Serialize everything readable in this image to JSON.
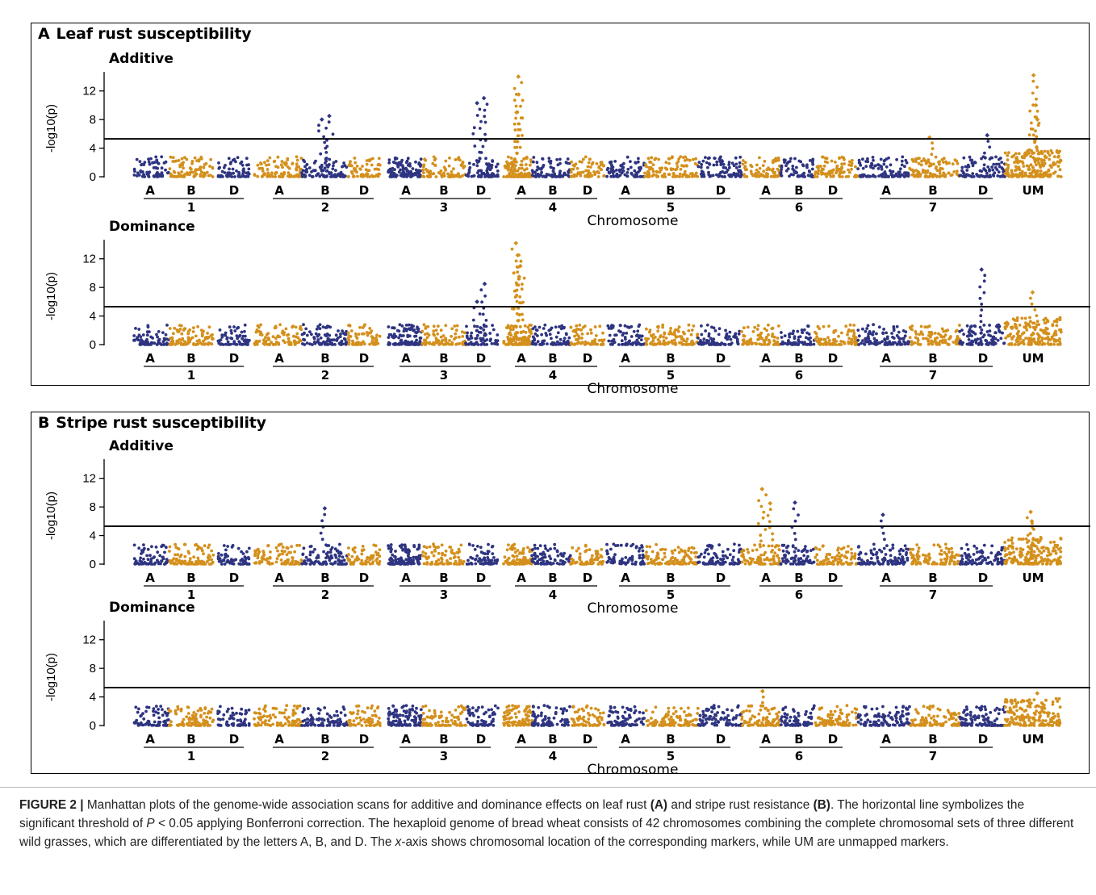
{
  "figure": {
    "caption_label": "FIGURE 2 |",
    "caption_part1": " Manhattan plots of the genome-wide association scans for additive and dominance effects on leaf rust ",
    "caption_ref_a": "(A)",
    "caption_part2": " and stripe rust resistance ",
    "caption_ref_b": "(B)",
    "caption_part3": ". The horizontal line symbolizes the significant threshold of ",
    "caption_p": "P",
    "caption_part4": " < 0.05 applying Bonferroni correction. The hexaploid genome of bread wheat consists of 42 chromosomes combining the complete chromosomal sets of three different wild grasses, which are differentiated by the letters A, B, and D. The ",
    "caption_x": "x",
    "caption_part5": "-axis shows chromosomal location of the corresponding markers, while UM are unmapped markers."
  },
  "panels": [
    {
      "letter": "A",
      "title": "Leaf rust susceptibility"
    },
    {
      "letter": "B",
      "title": "Stripe rust susceptibility"
    }
  ],
  "chart_data": [
    {
      "type": "scatter",
      "panel": "A",
      "title": "Additive",
      "ylabel": "-log10(p)",
      "xlabel": "Chromosome",
      "ylim": [
        0,
        14
      ],
      "y_ticks": [
        0,
        4,
        8,
        12
      ],
      "threshold": 5.3,
      "subgenome_labels": [
        "A",
        "B",
        "D",
        "A",
        "B",
        "D",
        "A",
        "B",
        "D",
        "A",
        "B",
        "D",
        "A",
        "B",
        "D",
        "A",
        "B",
        "D",
        "A",
        "B",
        "D",
        "UM"
      ],
      "chromosome_labels": [
        "1",
        "2",
        "3",
        "4",
        "5",
        "6",
        "7"
      ],
      "series_colors": [
        "#2e3480",
        "#d4901c"
      ],
      "notable_points": [
        {
          "x": "3D",
          "y": 11.0
        },
        {
          "x": "3D",
          "y": 10.3
        },
        {
          "x": "4A",
          "y": 14.0
        },
        {
          "x": "4A",
          "y": 11.5
        },
        {
          "x": "4A",
          "y": 9.0
        },
        {
          "x": "2B",
          "y": 8.5
        },
        {
          "x": "2B",
          "y": 8.0
        },
        {
          "x": "UM",
          "y": 14.2
        },
        {
          "x": "UM",
          "y": 10.0
        },
        {
          "x": "UM",
          "y": 8.0
        },
        {
          "x": "7B",
          "y": 5.5
        },
        {
          "x": "7D",
          "y": 5.8
        }
      ]
    },
    {
      "type": "scatter",
      "panel": "A",
      "title": "Dominance",
      "ylabel": "-log10(p)",
      "xlabel": "Chromosome",
      "ylim": [
        0,
        14
      ],
      "y_ticks": [
        0,
        4,
        8,
        12
      ],
      "threshold": 5.3,
      "subgenome_labels": [
        "A",
        "B",
        "D",
        "A",
        "B",
        "D",
        "A",
        "B",
        "D",
        "A",
        "B",
        "D",
        "A",
        "B",
        "D",
        "A",
        "B",
        "D",
        "A",
        "B",
        "D",
        "UM"
      ],
      "chromosome_labels": [
        "1",
        "2",
        "3",
        "4",
        "5",
        "6",
        "7"
      ],
      "series_colors": [
        "#2e3480",
        "#d4901c"
      ],
      "notable_points": [
        {
          "x": "4A",
          "y": 14.2
        },
        {
          "x": "4A",
          "y": 12.5
        },
        {
          "x": "4A",
          "y": 11.0
        },
        {
          "x": "4A",
          "y": 9.5
        },
        {
          "x": "3D",
          "y": 8.5
        },
        {
          "x": "3D",
          "y": 6.0
        },
        {
          "x": "7D",
          "y": 10.5
        },
        {
          "x": "UM",
          "y": 7.3
        }
      ]
    },
    {
      "type": "scatter",
      "panel": "B",
      "title": "Additive",
      "ylabel": "-log10(p)",
      "xlabel": "Chromosome",
      "ylim": [
        0,
        14
      ],
      "y_ticks": [
        0,
        4,
        8,
        12
      ],
      "threshold": 5.3,
      "subgenome_labels": [
        "A",
        "B",
        "D",
        "A",
        "B",
        "D",
        "A",
        "B",
        "D",
        "A",
        "B",
        "D",
        "A",
        "B",
        "D",
        "A",
        "B",
        "D",
        "A",
        "B",
        "D",
        "UM"
      ],
      "chromosome_labels": [
        "1",
        "2",
        "3",
        "4",
        "5",
        "6",
        "7"
      ],
      "series_colors": [
        "#2e3480",
        "#d4901c"
      ],
      "notable_points": [
        {
          "x": "6A",
          "y": 10.5
        },
        {
          "x": "6A",
          "y": 8.5
        },
        {
          "x": "6B",
          "y": 8.6
        },
        {
          "x": "2B",
          "y": 7.8
        },
        {
          "x": "7A",
          "y": 6.9
        },
        {
          "x": "UM",
          "y": 7.3
        },
        {
          "x": "UM",
          "y": 6.0
        }
      ]
    },
    {
      "type": "scatter",
      "panel": "B",
      "title": "Dominance",
      "ylabel": "-log10(p)",
      "xlabel": "Chromosome",
      "ylim": [
        0,
        14
      ],
      "y_ticks": [
        0,
        4,
        8,
        12
      ],
      "threshold": 5.3,
      "subgenome_labels": [
        "A",
        "B",
        "D",
        "A",
        "B",
        "D",
        "A",
        "B",
        "D",
        "A",
        "B",
        "D",
        "A",
        "B",
        "D",
        "A",
        "B",
        "D",
        "A",
        "B",
        "D",
        "UM"
      ],
      "chromosome_labels": [
        "1",
        "2",
        "3",
        "4",
        "5",
        "6",
        "7"
      ],
      "series_colors": [
        "#2e3480",
        "#d4901c"
      ],
      "notable_points": [
        {
          "x": "6A",
          "y": 4.8
        },
        {
          "x": "UM",
          "y": 4.5
        }
      ]
    }
  ]
}
